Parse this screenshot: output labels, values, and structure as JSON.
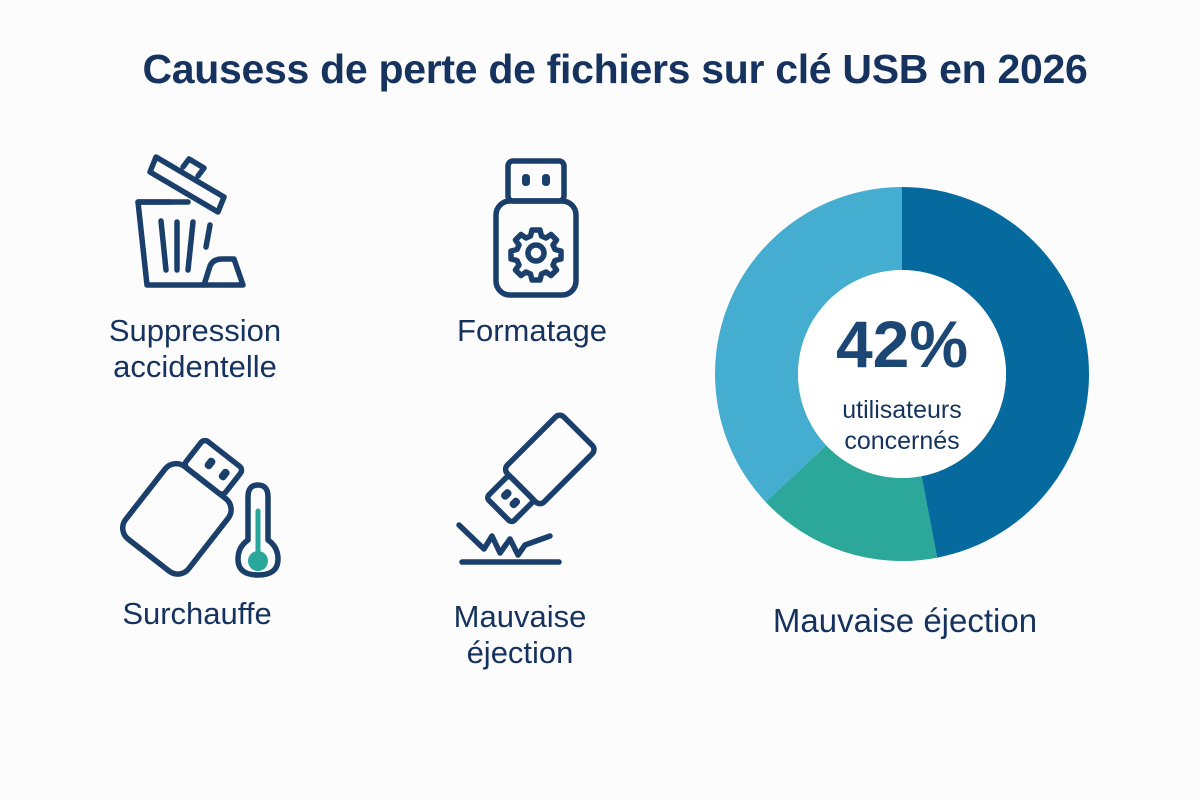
{
  "title": "Causess de perte de fichiers sur clé USB en 2026",
  "colors": {
    "text": "#15335e",
    "icon_stroke": "#1a3f6b",
    "accent_teal": "#2aa79b",
    "background": "#fcfcfc"
  },
  "causes": [
    {
      "label_line1": "Suppression",
      "label_line2": "accidentelle",
      "icon": "trash-can-icon"
    },
    {
      "label_line1": "Formatage",
      "label_line2": "",
      "icon": "usb-gear-icon"
    },
    {
      "label_line1": "Surchauffe",
      "label_line2": "",
      "icon": "usb-thermometer-icon"
    },
    {
      "label_line1": "Mauvaise",
      "label_line2": "éjection",
      "icon": "usb-drop-impact-icon"
    }
  ],
  "donut": {
    "center_value": "42%",
    "center_line1": "utilisateurs",
    "center_line2": "concernés",
    "caption": "Mauvaise éjection"
  },
  "chart_data": {
    "type": "pie",
    "subtype": "donut",
    "title": "",
    "center_label": "42% utilisateurs concernés",
    "caption": "Mauvaise éjection",
    "slices": [
      {
        "name": "dark blue segment",
        "value": 47,
        "color": "#066a9f"
      },
      {
        "name": "teal segment",
        "value": 16,
        "color": "#2ba89a"
      },
      {
        "name": "light blue segment",
        "value": 37,
        "color": "#45aed0"
      }
    ],
    "labels_shown": false,
    "legend": "none",
    "start_angle_deg": 0,
    "direction": "clockwise"
  }
}
